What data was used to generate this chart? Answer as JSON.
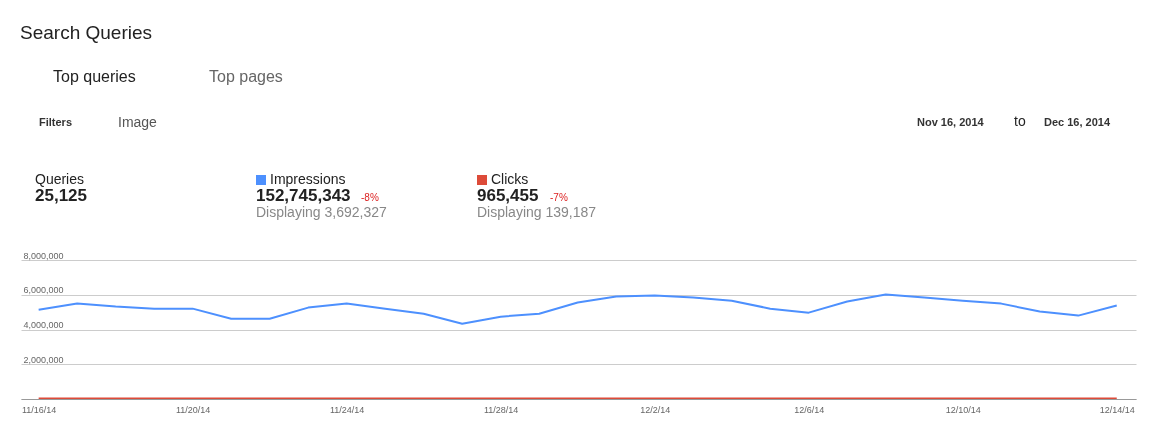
{
  "chart_data": {
    "type": "line",
    "title": "Search Queries",
    "annotations": [
      "Top queries",
      "Top pages",
      "Filters",
      "Image",
      "Nov 16, 2014",
      "to",
      "Dec 16, 2014",
      "Queries",
      "25,125",
      "152,745,343",
      "-8%",
      "Displaying 3,692,327",
      "965,455",
      "-7%",
      "Displaying 139,187"
    ],
    "x": [
      "2014-11-16",
      "2014-11-17",
      "2014-11-18",
      "2014-11-19",
      "2014-11-20",
      "2014-11-21",
      "2014-11-22",
      "2014-11-23",
      "2014-11-24",
      "2014-11-25",
      "2014-11-26",
      "2014-11-27",
      "2014-11-28",
      "2014-11-29",
      "2014-11-30",
      "2014-12-01",
      "2014-12-02",
      "2014-12-03",
      "2014-12-04",
      "2014-12-05",
      "2014-12-06",
      "2014-12-07",
      "2014-12-08",
      "2014-12-09",
      "2014-12-10",
      "2014-12-11",
      "2014-12-12",
      "2014-12-13",
      "2014-12-14"
    ],
    "series": [
      {
        "name": "Impressions",
        "color": "#4d90fe",
        "values": [
          5140000,
          5490000,
          5320000,
          5200000,
          5200000,
          4620000,
          4620000,
          5260000,
          5490000,
          5200000,
          4910000,
          4330000,
          4740000,
          4910000,
          5550000,
          5900000,
          5950000,
          5840000,
          5660000,
          5200000,
          4970000,
          5610000,
          6010000,
          5840000,
          5660000,
          5490000,
          5030000,
          4800000,
          5380000
        ]
      },
      {
        "name": "Clicks",
        "color": "#dd4b39",
        "values": [
          30000,
          30000,
          30000,
          30000,
          30000,
          30000,
          30000,
          30000,
          30000,
          30000,
          30000,
          30000,
          30000,
          30000,
          30000,
          30000,
          30000,
          30000,
          30000,
          30000,
          30000,
          30000,
          30000,
          30000,
          30000,
          30000,
          30000,
          30000,
          30000
        ]
      }
    ],
    "xlim": [
      "2014-11-15T13:00",
      "2014-12-14T12:00"
    ],
    "xticks": [
      {
        "value": "2014-11-16",
        "label": "11/16/14"
      },
      {
        "value": "2014-11-20",
        "label": "11/20/14"
      },
      {
        "value": "2014-11-24",
        "label": "11/24/14"
      },
      {
        "value": "2014-11-28",
        "label": "11/28/14"
      },
      {
        "value": "2014-12-02",
        "label": "12/2/14"
      },
      {
        "value": "2014-12-06",
        "label": "12/6/14"
      },
      {
        "value": "2014-12-10",
        "label": "12/10/14"
      },
      {
        "value": "2014-12-14",
        "label": "12/14/14"
      }
    ],
    "ylim": [
      0,
      8000000
    ],
    "yticks": [
      {
        "value": 0,
        "label": null
      },
      {
        "value": 2000000,
        "label": "2,000,000"
      },
      {
        "value": 4000000,
        "label": "4,000,000"
      },
      {
        "value": 6000000,
        "label": "6,000,000"
      },
      {
        "value": 8000000,
        "label": "8,000,000"
      }
    ],
    "grid": "y",
    "legend": "top left",
    "marker": "none",
    "line_style": "solid"
  }
}
